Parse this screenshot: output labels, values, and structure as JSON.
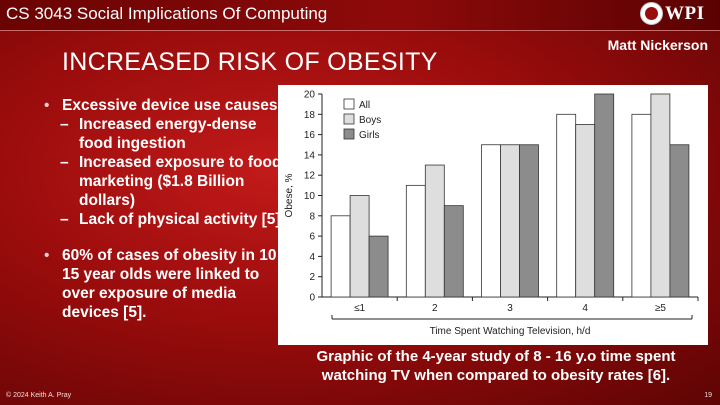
{
  "header": {
    "course_title": "CS 3043 Social Implications Of Computing",
    "logo_text": "WPI"
  },
  "author": "Matt Nickerson",
  "slide_title": "INCREASED RISK OF OBESITY",
  "bullets": {
    "b1": "Excessive device use causes:",
    "sub1": "Increased energy-dense food ingestion",
    "sub2": "Increased exposure to food marketing ($1.8 Billion dollars)",
    "sub3": "Lack of physical activity [5].",
    "b2": "60% of cases of obesity in 10 - 15 year olds were linked to over exposure of media devices [5]."
  },
  "caption": "Graphic of the 4-year study of 8 - 16 y.o time spent watching TV when compared to obesity rates [6].",
  "footer": {
    "copyright": "© 2024 Keith A. Pray",
    "page_number": "19"
  },
  "chart_data": {
    "type": "bar",
    "categories": [
      "≤1",
      "2",
      "3",
      "4",
      "≥5"
    ],
    "series": [
      {
        "name": "All",
        "color": "#ffffff",
        "values": [
          8,
          11,
          15,
          18,
          18
        ]
      },
      {
        "name": "Boys",
        "color": "#dedede",
        "values": [
          10,
          13,
          15,
          17,
          20
        ]
      },
      {
        "name": "Girls",
        "color": "#8c8c8c",
        "values": [
          6,
          9,
          15,
          20,
          15
        ]
      }
    ],
    "title": "",
    "xlabel": "Time Spent Watching Television, h/d",
    "ylabel": "Obese, %",
    "ylim": [
      0,
      20
    ],
    "yticks": [
      "0",
      "2",
      "4",
      "6",
      "8",
      "10",
      "12",
      "14",
      "16",
      "18",
      "20"
    ],
    "legend": "top-left",
    "grid": false
  }
}
